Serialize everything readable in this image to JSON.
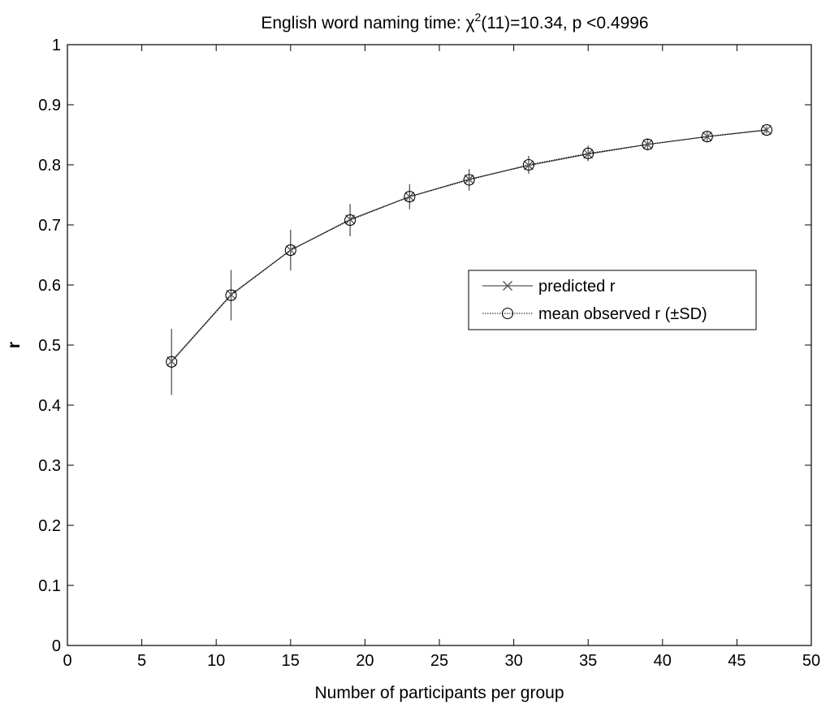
{
  "chart_data": {
    "type": "line",
    "title": {
      "prefix": "English word naming time: ",
      "symbol": "χ",
      "superscript": "2",
      "suffix": "(11)=10.34, p <0.4996"
    },
    "xlabel": "Number of participants per group",
    "ylabel": "r",
    "xlim": [
      0,
      50
    ],
    "ylim": [
      0,
      1
    ],
    "xticks": [
      0,
      5,
      10,
      15,
      20,
      25,
      30,
      35,
      40,
      45,
      50
    ],
    "yticks": [
      0,
      0.1,
      0.2,
      0.3,
      0.4,
      0.5,
      0.6,
      0.7,
      0.8,
      0.9,
      1
    ],
    "xtick_labels": [
      "0",
      "5",
      "10",
      "15",
      "20",
      "25",
      "30",
      "35",
      "40",
      "45",
      "50"
    ],
    "ytick_labels": [
      "0",
      "0.1",
      "0.2",
      "0.3",
      "0.4",
      "0.5",
      "0.6",
      "0.7",
      "0.8",
      "0.9",
      "1"
    ],
    "grid": false,
    "legend_position": "center-right",
    "x": [
      7,
      11,
      15,
      19,
      23,
      27,
      31,
      35,
      39,
      43,
      47
    ],
    "series": [
      {
        "name": "predicted r",
        "marker": "x",
        "line_style": "solid",
        "color": "#555555",
        "values": [
          0.473,
          0.584,
          0.658,
          0.709,
          0.747,
          0.776,
          0.799,
          0.818,
          0.834,
          0.847,
          0.858
        ]
      },
      {
        "name": "mean observed r (±SD)",
        "marker": "o",
        "line_style": "dotted",
        "color": "#000000",
        "values": [
          0.472,
          0.583,
          0.658,
          0.708,
          0.747,
          0.775,
          0.8,
          0.819,
          0.834,
          0.847,
          0.858
        ],
        "sd": [
          0.055,
          0.042,
          0.034,
          0.027,
          0.021,
          0.018,
          0.015,
          0.013,
          0.01,
          0.008,
          0.006
        ]
      }
    ]
  }
}
